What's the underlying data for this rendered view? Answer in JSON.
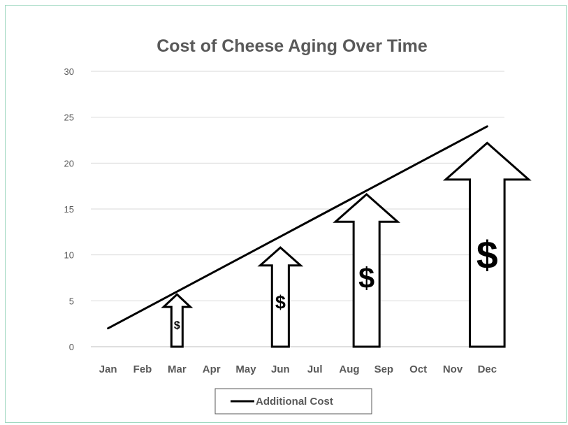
{
  "chart_data": {
    "type": "line",
    "title": "Cost of Cheese Aging Over Time",
    "xlabel": "",
    "ylabel": "",
    "categories": [
      "Jan",
      "Feb",
      "Mar",
      "Apr",
      "May",
      "Jun",
      "Jul",
      "Aug",
      "Sep",
      "Oct",
      "Nov",
      "Dec"
    ],
    "yticks": [
      "0",
      "5",
      "10",
      "15",
      "20",
      "25",
      "30"
    ],
    "ylim": [
      0,
      30
    ],
    "grid": true,
    "legend_position": "bottom",
    "series": [
      {
        "name": "Additional Cost",
        "color": "#000000",
        "values": [
          2,
          4,
          6,
          8,
          10,
          12,
          14,
          16,
          18,
          20,
          22,
          24
        ]
      }
    ],
    "arrows": [
      {
        "category": "Mar",
        "top_value": 5.7,
        "symbol": "$",
        "color": "#000000"
      },
      {
        "category": "Jun",
        "top_value": 10.8,
        "symbol": "$",
        "color": "#000000"
      },
      {
        "category": "Aug",
        "category_to": "Sep",
        "top_value": 16.6,
        "symbol": "$",
        "color": "#000000"
      },
      {
        "category": "Dec",
        "top_value": 22.2,
        "symbol": "$",
        "color": "#000000"
      }
    ]
  }
}
